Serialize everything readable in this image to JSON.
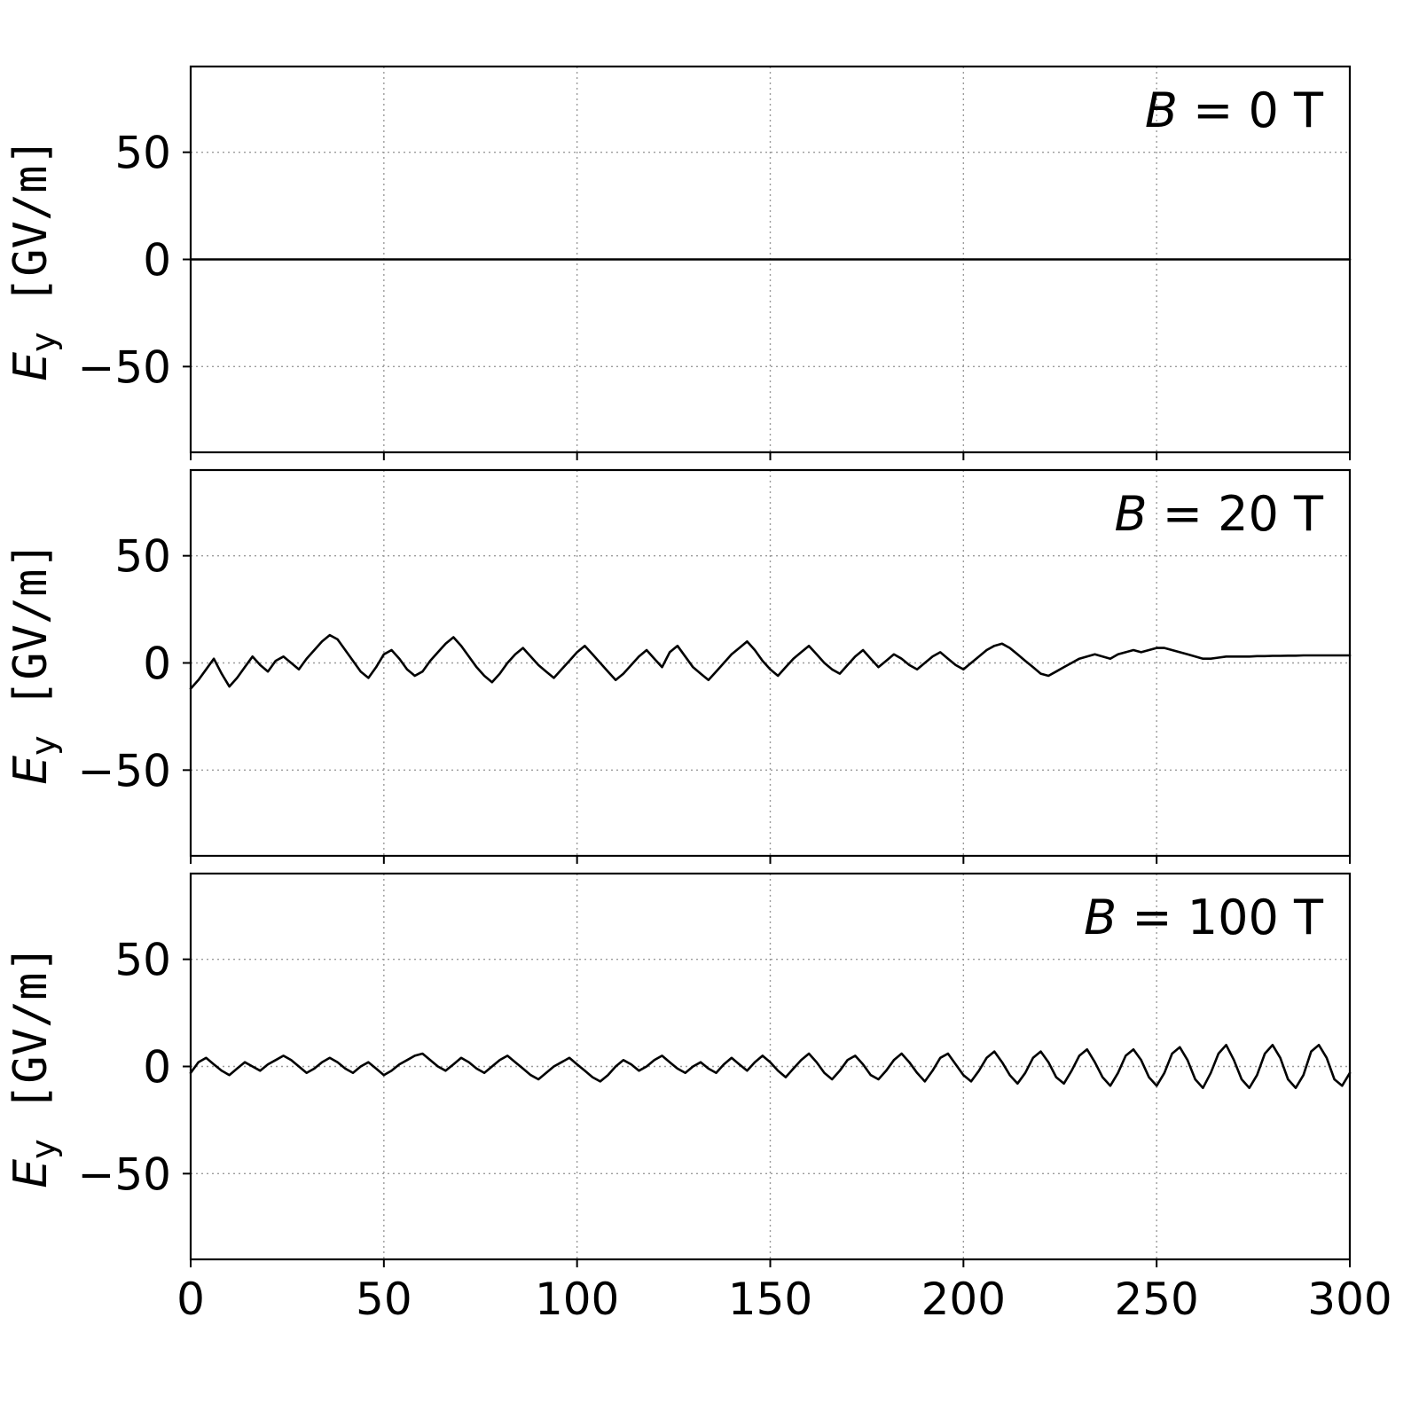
{
  "chart_data": [
    {
      "type": "line",
      "annotation": {
        "var": "B",
        "rest": " = 0 T"
      },
      "ylabel_parts": {
        "var": "E",
        "sub": "y",
        "rest": " [GV/m]"
      },
      "xlim": [
        0,
        300
      ],
      "ylim": [
        -90,
        90
      ],
      "xticks": [
        0,
        50,
        100,
        150,
        200,
        250,
        300
      ],
      "xtick_labels": [
        "0",
        "50",
        "100",
        "150",
        "200",
        "250",
        "300"
      ],
      "yticks": [
        50,
        0,
        -50
      ],
      "ytick_labels": [
        "50",
        "0",
        "−50"
      ],
      "grid": true,
      "legend": "none",
      "show_xtick_labels": false,
      "x_start": 0,
      "x_step": 300,
      "values": [
        0,
        0
      ]
    },
    {
      "type": "line",
      "annotation": {
        "var": "B",
        "rest": " = 20 T"
      },
      "ylabel_parts": {
        "var": "E",
        "sub": "y",
        "rest": " [GV/m]"
      },
      "xlim": [
        0,
        300
      ],
      "ylim": [
        -90,
        90
      ],
      "xticks": [
        0,
        50,
        100,
        150,
        200,
        250,
        300
      ],
      "xtick_labels": [
        "0",
        "50",
        "100",
        "150",
        "200",
        "250",
        "300"
      ],
      "yticks": [
        50,
        0,
        -50
      ],
      "ytick_labels": [
        "50",
        "0",
        "−50"
      ],
      "grid": true,
      "legend": "none",
      "show_xtick_labels": false,
      "x_start": 0,
      "x_step": 2,
      "values": [
        -12,
        -8,
        -3,
        2,
        -5,
        -11,
        -7,
        -2,
        3,
        -1,
        -4,
        1,
        3,
        0,
        -3,
        2,
        6,
        10,
        13,
        11,
        6,
        1,
        -4,
        -7,
        -2,
        4,
        6,
        2,
        -3,
        -6,
        -4,
        1,
        5,
        9,
        12,
        8,
        3,
        -2,
        -6,
        -9,
        -5,
        0,
        4,
        7,
        3,
        -1,
        -4,
        -7,
        -3,
        1,
        5,
        8,
        4,
        0,
        -4,
        -8,
        -5,
        -1,
        3,
        6,
        2,
        -2,
        5,
        8,
        3,
        -2,
        -5,
        -8,
        -4,
        0,
        4,
        7,
        10,
        6,
        1,
        -3,
        -6,
        -2,
        2,
        5,
        8,
        4,
        0,
        -3,
        -5,
        -1,
        3,
        6,
        2,
        -2,
        1,
        4,
        2,
        -1,
        -3,
        0,
        3,
        5,
        2,
        -1,
        -3,
        0,
        3,
        6,
        8,
        9,
        7,
        4,
        1,
        -2,
        -5,
        -6,
        -4,
        -2,
        0,
        2,
        3,
        4,
        3,
        2,
        4,
        5,
        6,
        5,
        6,
        7,
        7,
        6,
        5,
        4,
        3,
        2,
        2,
        2.5,
        3,
        3,
        3,
        3,
        3.2,
        3.2,
        3.3,
        3.3,
        3.4,
        3.4,
        3.5,
        3.5,
        3.5,
        3.5,
        3.5,
        3.5,
        3.5
      ]
    },
    {
      "type": "line",
      "annotation": {
        "var": "B",
        "rest": " = 100 T"
      },
      "ylabel_parts": {
        "var": "E",
        "sub": "y",
        "rest": " [GV/m]"
      },
      "xlim": [
        0,
        300
      ],
      "ylim": [
        -90,
        90
      ],
      "xticks": [
        0,
        50,
        100,
        150,
        200,
        250,
        300
      ],
      "xtick_labels": [
        "0",
        "50",
        "100",
        "150",
        "200",
        "250",
        "300"
      ],
      "yticks": [
        50,
        0,
        -50
      ],
      "ytick_labels": [
        "50",
        "0",
        "−50"
      ],
      "grid": true,
      "legend": "none",
      "show_xtick_labels": true,
      "x_start": 0,
      "x_step": 2,
      "values": [
        -3,
        2,
        4,
        1,
        -2,
        -4,
        -1,
        2,
        0,
        -2,
        1,
        3,
        5,
        3,
        0,
        -3,
        -1,
        2,
        4,
        2,
        -1,
        -3,
        0,
        2,
        -1,
        -4,
        -2,
        1,
        3,
        5,
        6,
        3,
        0,
        -2,
        1,
        4,
        2,
        -1,
        -3,
        0,
        3,
        5,
        2,
        -1,
        -4,
        -6,
        -3,
        0,
        2,
        4,
        1,
        -2,
        -5,
        -7,
        -4,
        0,
        3,
        1,
        -2,
        0,
        3,
        5,
        2,
        -1,
        -3,
        0,
        2,
        -1,
        -3,
        1,
        4,
        1,
        -2,
        2,
        5,
        2,
        -2,
        -5,
        -1,
        3,
        6,
        2,
        -3,
        -6,
        -2,
        3,
        5,
        1,
        -4,
        -6,
        -2,
        3,
        6,
        2,
        -3,
        -7,
        -2,
        4,
        6,
        1,
        -4,
        -7,
        -2,
        4,
        7,
        2,
        -4,
        -8,
        -3,
        4,
        7,
        2,
        -5,
        -8,
        -2,
        5,
        8,
        2,
        -5,
        -9,
        -3,
        5,
        8,
        3,
        -5,
        -9,
        -3,
        6,
        9,
        3,
        -6,
        -10,
        -3,
        6,
        10,
        3,
        -6,
        -10,
        -4,
        6,
        10,
        4,
        -6,
        -10,
        -4,
        7,
        10,
        4,
        -6,
        -9,
        -3
      ]
    }
  ]
}
